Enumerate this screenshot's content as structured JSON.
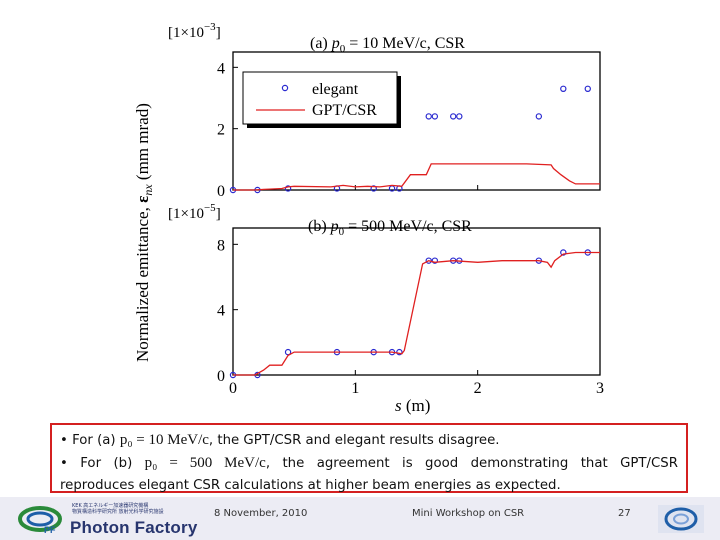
{
  "chart_data": [
    {
      "type": "line",
      "title_prefix": "(a) ",
      "title_var": "p",
      "title_sub": "0",
      "title_suffix": " = 10 MeV/c, CSR",
      "multiplier": "[1×10",
      "multiplier_exp": "−3",
      "multiplier_end": "]",
      "ylim": [
        0,
        4.5
      ],
      "yticks": [
        "0",
        "2",
        "4"
      ],
      "ytick_values": [
        0,
        2,
        4
      ],
      "legend": [
        "elegant",
        "GPT/CSR"
      ],
      "legend_position": "top-left",
      "series": [
        {
          "name": "elegant",
          "kind": "markers",
          "x": [
            0.0,
            0.2,
            0.45,
            0.85,
            1.15,
            1.3,
            1.36,
            1.6,
            1.65,
            1.8,
            1.85,
            2.5,
            2.7,
            2.9
          ],
          "y": [
            0.0,
            0.0,
            0.05,
            0.05,
            0.05,
            0.05,
            0.05,
            2.4,
            2.4,
            2.4,
            2.4,
            2.4,
            3.3,
            3.3
          ]
        },
        {
          "name": "GPT/CSR",
          "kind": "line",
          "x": [
            0.0,
            0.18,
            0.25,
            0.3,
            0.4,
            0.45,
            0.5,
            0.8,
            0.9,
            1.0,
            1.1,
            1.2,
            1.3,
            1.38,
            1.45,
            1.58,
            1.62,
            2.1,
            2.4,
            2.6,
            2.62,
            2.68,
            2.75,
            2.8,
            3.0
          ],
          "y": [
            0.0,
            0.0,
            0.02,
            0.03,
            0.05,
            0.1,
            0.12,
            0.1,
            0.15,
            0.1,
            0.12,
            0.1,
            0.15,
            0.12,
            0.5,
            0.5,
            0.85,
            0.85,
            0.85,
            0.82,
            0.7,
            0.5,
            0.3,
            0.2,
            0.2
          ]
        }
      ]
    },
    {
      "type": "line",
      "title_prefix": "(b) ",
      "title_var": "p",
      "title_sub": "0",
      "title_suffix": " = 500 MeV/c, CSR",
      "multiplier": "[1×10",
      "multiplier_exp": "−5",
      "multiplier_end": "]",
      "ylim": [
        0,
        9
      ],
      "yticks": [
        "0",
        "4",
        "8"
      ],
      "ytick_values": [
        0,
        4,
        8
      ],
      "xlim": [
        0,
        3
      ],
      "xticks": [
        "0",
        "1",
        "2",
        "3"
      ],
      "xtick_values": [
        0,
        1,
        2,
        3
      ],
      "xlabel_var": "s",
      "xlabel_unit": " (m)",
      "series": [
        {
          "name": "elegant",
          "kind": "markers",
          "x": [
            0.0,
            0.2,
            0.45,
            0.85,
            1.15,
            1.3,
            1.36,
            1.6,
            1.65,
            1.8,
            1.85,
            2.5,
            2.7,
            2.9
          ],
          "y": [
            0.0,
            0.0,
            1.4,
            1.4,
            1.4,
            1.4,
            1.4,
            7.0,
            7.0,
            7.0,
            7.0,
            7.0,
            7.5,
            7.5
          ]
        },
        {
          "name": "GPT/CSR",
          "kind": "line",
          "x": [
            0.0,
            0.18,
            0.25,
            0.3,
            0.4,
            0.45,
            0.5,
            1.0,
            1.3,
            1.38,
            1.4,
            1.55,
            1.6,
            1.65,
            1.8,
            2.0,
            2.2,
            2.5,
            2.57,
            2.6,
            2.63,
            2.7,
            2.8,
            3.0
          ],
          "y": [
            0.0,
            0.0,
            0.3,
            0.6,
            0.6,
            1.2,
            1.4,
            1.4,
            1.4,
            1.3,
            1.5,
            6.8,
            7.0,
            6.9,
            7.0,
            6.9,
            7.0,
            7.0,
            6.9,
            6.6,
            7.0,
            7.4,
            7.5,
            7.5
          ]
        }
      ]
    }
  ],
  "ylabel_main": "Normalized emittance, ",
  "ylabel_sym": "ε",
  "ylabel_sub": "nx",
  "ylabel_unit": " (mm mrad)",
  "notes": {
    "line1_pre": "• For (a) ",
    "line1_math": "p₀ = 10 MeV/c",
    "line1_post": ", the GPT/CSR and elegant results disagree.",
    "line2_pre": "• For (b) ",
    "line2_math": "p₀ = 500 MeV/c",
    "line2_post": ", the agreement is good demonstrating that GPT/CSR",
    "line3": "reproduces elegant CSR calculations at higher beam energies as expected."
  },
  "footer": {
    "org_name": "Photon Factory",
    "logo_text": "PF",
    "org_jp_line1": "KEK 高エネルギー加速器研究機構",
    "org_jp_line2": "物質構造科学研究所 放射光科学研究施設",
    "date": "8 November, 2010",
    "event": "Mini Workshop on CSR",
    "page": "27"
  },
  "colors": {
    "elegant": "#2a2ad0",
    "gpt_csr": "#e02020",
    "box_border": "#d42020",
    "footer_bg": "#ececf4",
    "brand": "#27356e"
  }
}
